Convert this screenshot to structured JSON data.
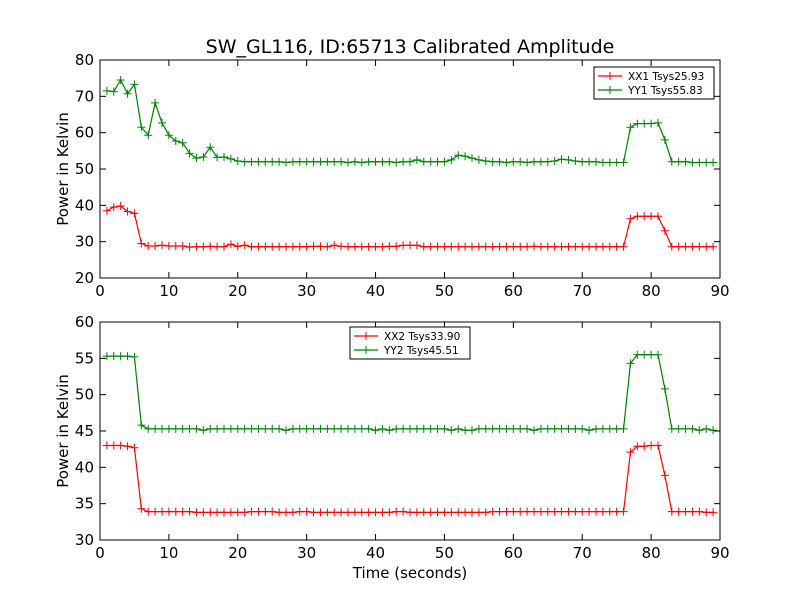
{
  "figure": {
    "title": "SW_GL116, ID:65713 Calibrated Amplitude",
    "xlabel": "Time (seconds)"
  },
  "chart_data": [
    {
      "type": "line",
      "ylabel": "Power in Kelvin",
      "xlim": [
        0,
        90
      ],
      "ylim": [
        20,
        80
      ],
      "xticks": [
        0,
        10,
        20,
        30,
        40,
        50,
        60,
        70,
        80,
        90
      ],
      "yticks": [
        20,
        30,
        40,
        50,
        60,
        70,
        80
      ],
      "grid": false,
      "legend_position": "top-right",
      "x": [
        1,
        2,
        3,
        4,
        5,
        6,
        7,
        8,
        9,
        10,
        11,
        12,
        13,
        14,
        15,
        16,
        17,
        18,
        19,
        20,
        21,
        22,
        23,
        24,
        25,
        26,
        27,
        28,
        29,
        30,
        31,
        32,
        33,
        34,
        35,
        36,
        37,
        38,
        39,
        40,
        41,
        42,
        43,
        44,
        45,
        46,
        47,
        48,
        49,
        50,
        51,
        52,
        53,
        54,
        55,
        56,
        57,
        58,
        59,
        60,
        61,
        62,
        63,
        64,
        65,
        66,
        67,
        68,
        69,
        70,
        71,
        72,
        73,
        74,
        75,
        76,
        77,
        78,
        79,
        80,
        81,
        82,
        83,
        84,
        85,
        86,
        87,
        88,
        89
      ],
      "series": [
        {
          "name": "XX1 Tsys25.93",
          "color": "#ff0000",
          "values": [
            38.5,
            39.5,
            39.8,
            38.3,
            37.8,
            29.5,
            28.8,
            28.8,
            29.0,
            28.8,
            28.8,
            28.8,
            28.5,
            28.6,
            28.6,
            28.7,
            28.6,
            28.6,
            29.3,
            28.7,
            29.0,
            28.6,
            28.6,
            28.6,
            28.6,
            28.6,
            28.6,
            28.6,
            28.6,
            28.6,
            28.7,
            28.7,
            28.6,
            29.0,
            28.7,
            28.6,
            28.6,
            28.6,
            28.6,
            28.6,
            28.6,
            28.7,
            28.7,
            29.0,
            29.0,
            29.0,
            28.6,
            28.6,
            28.6,
            28.6,
            28.6,
            28.6,
            28.6,
            28.6,
            28.6,
            28.6,
            28.6,
            28.6,
            28.6,
            28.6,
            28.6,
            28.6,
            28.7,
            28.6,
            28.6,
            28.6,
            28.6,
            28.6,
            28.6,
            28.6,
            28.6,
            28.6,
            28.6,
            28.6,
            28.6,
            28.6,
            36.3,
            37.0,
            37.0,
            37.0,
            37.0,
            33.0,
            28.6,
            28.6,
            28.6,
            28.6,
            28.6,
            28.6,
            28.6
          ]
        },
        {
          "name": "YY1 Tsys55.83",
          "color": "#008000",
          "values": [
            71.5,
            71.3,
            74.5,
            70.7,
            73.3,
            61.5,
            59.3,
            68.2,
            62.7,
            59.3,
            57.7,
            57.2,
            54.3,
            53.0,
            53.3,
            56.0,
            53.2,
            53.3,
            52.8,
            52.2,
            52.0,
            52.0,
            52.0,
            52.0,
            52.0,
            52.0,
            51.8,
            52.0,
            52.0,
            52.0,
            52.0,
            52.0,
            52.0,
            52.0,
            52.0,
            51.8,
            52.0,
            51.8,
            52.0,
            52.0,
            52.0,
            52.0,
            51.8,
            52.0,
            52.0,
            52.5,
            52.0,
            52.0,
            52.0,
            52.0,
            52.5,
            53.8,
            53.5,
            53.0,
            52.5,
            52.2,
            52.0,
            52.0,
            51.8,
            52.0,
            52.0,
            51.8,
            52.0,
            52.0,
            52.0,
            52.2,
            52.7,
            52.5,
            52.2,
            52.0,
            52.0,
            52.0,
            51.8,
            51.8,
            51.8,
            51.8,
            61.5,
            62.5,
            62.5,
            62.5,
            62.7,
            58.0,
            52.0,
            52.0,
            52.0,
            51.8,
            51.8,
            51.8,
            51.8
          ]
        }
      ]
    },
    {
      "type": "line",
      "ylabel": "Power in Kelvin",
      "xlim": [
        0,
        90
      ],
      "ylim": [
        30,
        60
      ],
      "xticks": [
        0,
        10,
        20,
        30,
        40,
        50,
        60,
        70,
        80,
        90
      ],
      "yticks": [
        30,
        35,
        40,
        45,
        50,
        55,
        60
      ],
      "grid": false,
      "legend_position": "top-center",
      "x": [
        1,
        2,
        3,
        4,
        5,
        6,
        7,
        8,
        9,
        10,
        11,
        12,
        13,
        14,
        15,
        16,
        17,
        18,
        19,
        20,
        21,
        22,
        23,
        24,
        25,
        26,
        27,
        28,
        29,
        30,
        31,
        32,
        33,
        34,
        35,
        36,
        37,
        38,
        39,
        40,
        41,
        42,
        43,
        44,
        45,
        46,
        47,
        48,
        49,
        50,
        51,
        52,
        53,
        54,
        55,
        56,
        57,
        58,
        59,
        60,
        61,
        62,
        63,
        64,
        65,
        66,
        67,
        68,
        69,
        70,
        71,
        72,
        73,
        74,
        75,
        76,
        77,
        78,
        79,
        80,
        81,
        82,
        83,
        84,
        85,
        86,
        87,
        88,
        89
      ],
      "series": [
        {
          "name": "XX2 Tsys33.90",
          "color": "#ff0000",
          "values": [
            43.0,
            43.0,
            43.0,
            42.9,
            42.7,
            34.3,
            33.9,
            33.9,
            33.9,
            33.9,
            33.9,
            33.9,
            33.9,
            33.8,
            33.8,
            33.8,
            33.8,
            33.8,
            33.8,
            33.8,
            33.8,
            33.9,
            33.9,
            33.9,
            33.9,
            33.8,
            33.8,
            33.8,
            33.9,
            33.9,
            33.8,
            33.8,
            33.8,
            33.8,
            33.8,
            33.8,
            33.8,
            33.8,
            33.8,
            33.8,
            33.8,
            33.8,
            33.9,
            33.9,
            33.8,
            33.8,
            33.8,
            33.8,
            33.8,
            33.8,
            33.8,
            33.8,
            33.8,
            33.8,
            33.8,
            33.8,
            33.9,
            33.9,
            33.9,
            33.9,
            33.9,
            33.9,
            33.9,
            33.9,
            33.9,
            33.9,
            33.9,
            33.9,
            33.9,
            33.9,
            33.9,
            33.9,
            33.9,
            33.9,
            33.9,
            33.9,
            42.1,
            42.9,
            42.9,
            43.0,
            43.0,
            38.9,
            33.9,
            33.9,
            33.9,
            33.9,
            33.9,
            33.8,
            33.8
          ]
        },
        {
          "name": "YY2 Tsys45.51",
          "color": "#008000",
          "values": [
            55.3,
            55.3,
            55.3,
            55.3,
            55.2,
            45.8,
            45.3,
            45.3,
            45.3,
            45.3,
            45.3,
            45.3,
            45.3,
            45.3,
            45.1,
            45.3,
            45.3,
            45.3,
            45.3,
            45.3,
            45.3,
            45.3,
            45.3,
            45.3,
            45.3,
            45.3,
            45.1,
            45.3,
            45.3,
            45.3,
            45.3,
            45.3,
            45.3,
            45.3,
            45.3,
            45.3,
            45.3,
            45.3,
            45.3,
            45.1,
            45.3,
            45.1,
            45.3,
            45.3,
            45.3,
            45.3,
            45.3,
            45.3,
            45.3,
            45.3,
            45.1,
            45.3,
            45.1,
            45.1,
            45.3,
            45.3,
            45.3,
            45.3,
            45.3,
            45.3,
            45.3,
            45.3,
            45.1,
            45.3,
            45.3,
            45.3,
            45.3,
            45.3,
            45.3,
            45.3,
            45.1,
            45.3,
            45.3,
            45.3,
            45.3,
            45.3,
            54.3,
            55.5,
            55.5,
            55.5,
            55.5,
            50.8,
            45.3,
            45.3,
            45.3,
            45.3,
            45.1,
            45.3,
            45.1
          ]
        }
      ]
    }
  ]
}
